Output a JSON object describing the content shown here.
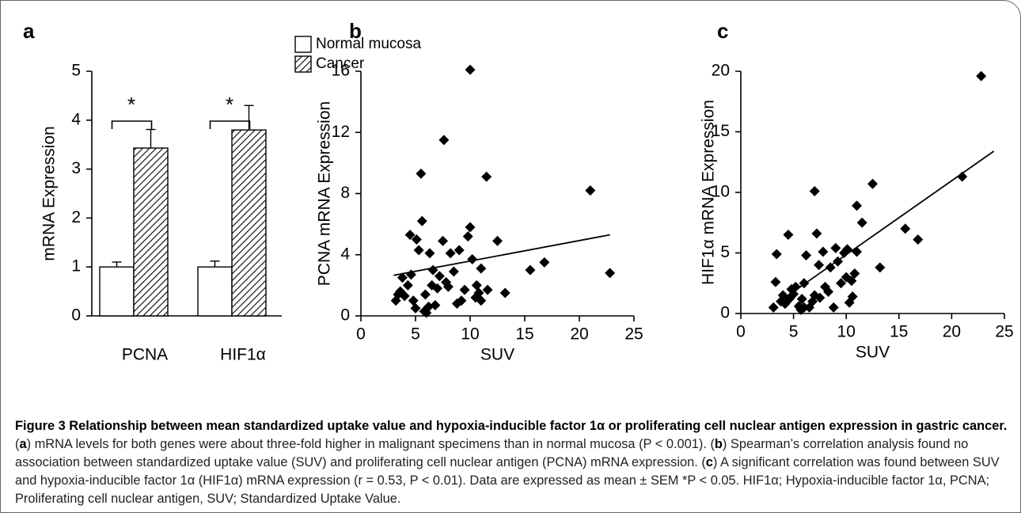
{
  "chart_data": [
    {
      "type": "bar",
      "panel": "a",
      "ylabel": "mRNA Expression",
      "categories": [
        "PCNA",
        "HIF1α"
      ],
      "series": [
        {
          "name": "Normal mucosa",
          "color": "#ffffff",
          "pattern": "none",
          "values": [
            1,
            1
          ],
          "errors": [
            0.1,
            0.12
          ]
        },
        {
          "name": "Cancer",
          "color": "#ffffff",
          "pattern": "hatch",
          "values": [
            3.43,
            3.8
          ],
          "errors": [
            0.38,
            0.5
          ]
        }
      ],
      "annotations": [
        "*",
        "*"
      ],
      "ylim": [
        0,
        5
      ],
      "yticks": [
        0,
        1,
        2,
        3,
        4,
        5
      ]
    },
    {
      "type": "scatter",
      "panel": "b",
      "xlabel": "SUV",
      "ylabel": "PCNA mRNA Expression",
      "color": "#000000",
      "x": [
        3.2,
        3.4,
        3.6,
        3.8,
        4.0,
        4.3,
        4.5,
        4.6,
        4.8,
        5.0,
        5.1,
        5.3,
        5.5,
        5.6,
        5.8,
        5.9,
        6.0,
        6.2,
        6.3,
        6.5,
        6.6,
        6.8,
        7.0,
        7.2,
        7.5,
        7.6,
        7.8,
        8.0,
        8.2,
        8.5,
        8.8,
        9.0,
        9.2,
        9.5,
        9.8,
        10.0,
        10.0,
        10.2,
        10.5,
        10.6,
        10.8,
        11.0,
        11.0,
        11.5,
        11.6,
        12.5,
        13.2,
        15.5,
        16.8,
        21.0,
        22.8
      ],
      "values": [
        1.0,
        1.4,
        1.6,
        2.5,
        1.3,
        2.0,
        5.3,
        2.7,
        1.0,
        0.5,
        5.0,
        4.3,
        9.3,
        6.2,
        0.3,
        1.4,
        0.2,
        0.6,
        4.1,
        2.0,
        3.0,
        0.7,
        1.8,
        2.6,
        4.9,
        11.5,
        2.2,
        1.9,
        4.1,
        2.9,
        0.8,
        4.3,
        1.0,
        1.7,
        5.2,
        16.1,
        5.8,
        3.7,
        1.2,
        2.0,
        1.5,
        3.1,
        1.0,
        9.1,
        1.7,
        4.9,
        1.5,
        3.0,
        3.5,
        8.2,
        2.8
      ],
      "fit_line": {
        "x": [
          3,
          22.8
        ],
        "y": [
          2.65,
          5.3
        ]
      },
      "xlim": [
        0,
        25
      ],
      "xticks": [
        0,
        5,
        10,
        15,
        20,
        25
      ],
      "ylim": [
        0,
        16
      ],
      "yticks": [
        0,
        4,
        8,
        12,
        16
      ]
    },
    {
      "type": "scatter",
      "panel": "c",
      "xlabel": "SUV",
      "ylabel": "HIF1α mRNA Expression",
      "color": "#000000",
      "x": [
        3.1,
        3.3,
        3.4,
        3.8,
        4.0,
        4.2,
        4.5,
        4.6,
        4.8,
        5.0,
        5.2,
        5.5,
        5.7,
        5.8,
        6.0,
        6.0,
        6.2,
        6.5,
        6.8,
        7.0,
        7.0,
        7.2,
        7.4,
        7.5,
        7.8,
        8.0,
        8.3,
        8.5,
        8.8,
        9.0,
        9.2,
        9.5,
        9.8,
        10.0,
        10.1,
        10.3,
        10.5,
        10.6,
        10.8,
        11.0,
        11.0,
        11.5,
        12.5,
        13.2,
        15.6,
        16.8,
        21.0,
        22.8
      ],
      "values": [
        0.5,
        2.6,
        4.9,
        1.0,
        1.5,
        0.8,
        6.5,
        1.2,
        2.0,
        1.6,
        2.2,
        0.6,
        0.3,
        1.2,
        2.5,
        0.5,
        4.8,
        0.5,
        1.0,
        10.1,
        1.5,
        6.6,
        4.0,
        1.3,
        5.1,
        2.2,
        1.8,
        3.8,
        0.5,
        5.4,
        4.3,
        2.5,
        5.0,
        3.0,
        5.3,
        0.9,
        2.7,
        1.4,
        3.3,
        5.1,
        8.9,
        7.5,
        10.7,
        3.8,
        7.0,
        6.1,
        11.3,
        19.6
      ],
      "fit_line": {
        "x": [
          4,
          24
        ],
        "y": [
          1.2,
          13.4
        ]
      },
      "xlim": [
        0,
        25
      ],
      "xticks": [
        0,
        5,
        10,
        15,
        20,
        25
      ],
      "ylim": [
        0,
        20
      ],
      "yticks": [
        0,
        5,
        10,
        15,
        20
      ]
    }
  ],
  "caption": [
    {
      "text": "Figure 3 Relationship between mean standardized uptake value and hypoxia-inducible factor 1α or proliferating cell nuclear antigen expression in gastric cancer.",
      "bold": true
    },
    {
      "text": " (",
      "bold": false
    },
    {
      "text": "a",
      "bold": true
    },
    {
      "text": ") mRNA levels for both genes were about three-fold higher in malignant specimens than in normal mucosa (P < 0.001). (",
      "bold": false
    },
    {
      "text": "b",
      "bold": true
    },
    {
      "text": ") Spearman’s correlation analysis found no association between standardized uptake value (SUV) and proliferating cell nuclear antigen (PCNA) mRNA expression. (",
      "bold": false
    },
    {
      "text": "c",
      "bold": true
    },
    {
      "text": ") A significant correlation was found between SUV and hypoxia-inducible factor 1α (HIF1α) mRNA expression (r = 0.53, P < 0.01). Data are expressed as mean ± SEM *P < 0.05. HIF1α; Hypoxia-inducible factor 1α, PCNA; Proliferating cell nuclear antigen, SUV; Standardized Uptake Value.",
      "bold": false
    }
  ]
}
